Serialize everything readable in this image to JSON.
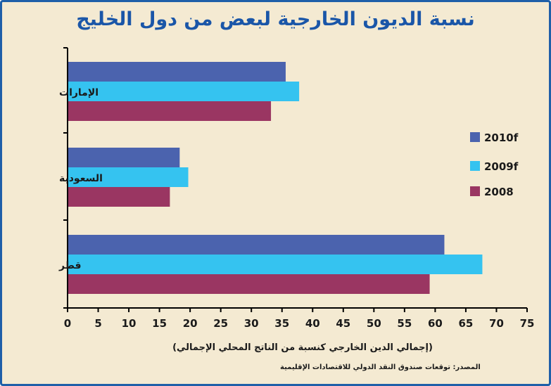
{
  "chart_data": {
    "type": "bar",
    "orientation": "horizontal",
    "title": "نسبة الديون الخارجية لبعض من دول الخليج",
    "xlabel": "(إجمالي الدين الخارجي كنسبة من الناتج المحلي الإجمالي)",
    "source": "المصدر: توقعات صندوق النقد الدولي للاقتصادات الإقليمية",
    "categories": [
      "الإمارات",
      "السعودية",
      "قطر"
    ],
    "series": [
      {
        "name": "2010f",
        "color": "#4b63ae",
        "values": [
          35.6,
          18.3,
          61.5
        ]
      },
      {
        "name": "2009f",
        "color": "#35c3f0",
        "values": [
          37.8,
          19.7,
          67.7
        ]
      },
      {
        "name": "2008",
        "color": "#9a3662",
        "values": [
          33.2,
          16.7,
          59.1
        ]
      }
    ],
    "xlim": [
      0,
      75
    ],
    "xticks": [
      0,
      5,
      10,
      15,
      20,
      25,
      30,
      35,
      40,
      45,
      50,
      55,
      60,
      65,
      70,
      75
    ],
    "legend": "right",
    "grid": false
  }
}
